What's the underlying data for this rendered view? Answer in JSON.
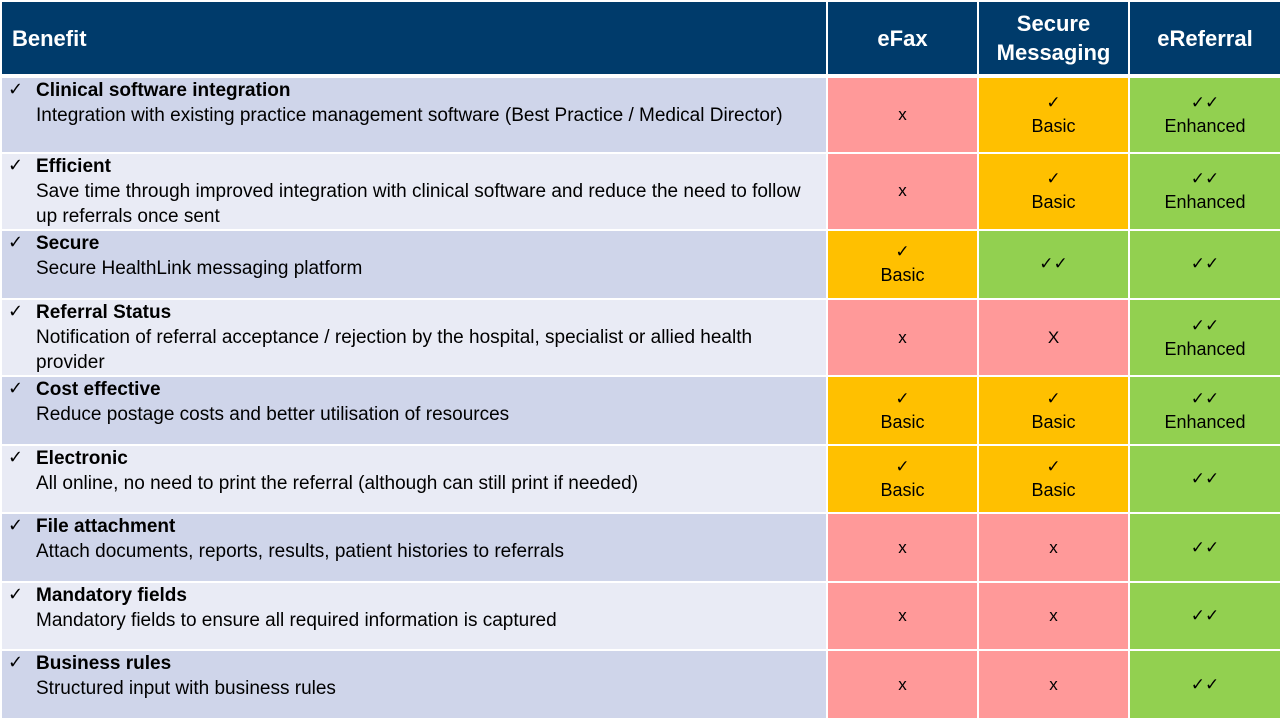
{
  "header": {
    "benefit": "Benefit",
    "efax": "eFax",
    "secure_messaging_line1": "Secure",
    "secure_messaging_line2": "Messaging",
    "ereferral": "eReferral"
  },
  "colors": {
    "header_bg": "#003b6b",
    "row_odd": "#cfd5ea",
    "row_even": "#e9ebf5",
    "red": "#ff9999",
    "amber": "#ffc000",
    "green": "#92d050"
  },
  "rows": [
    {
      "tick": "✓",
      "title": "Clinical software integration",
      "desc": "Integration with existing practice management  software (Best Practice / Medical Director)",
      "efax": {
        "mark": "x",
        "level": "",
        "color": "red"
      },
      "sm": {
        "mark": "✓",
        "level": "Basic",
        "color": "amber"
      },
      "eref": {
        "mark": "✓✓",
        "level": "Enhanced",
        "color": "green"
      }
    },
    {
      "tick": "✓",
      "title": "Efficient",
      "desc": "Save time through improved integration with clinical software and reduce the need to follow up referrals once sent",
      "efax": {
        "mark": "x",
        "level": "",
        "color": "red"
      },
      "sm": {
        "mark": "✓",
        "level": "Basic",
        "color": "amber"
      },
      "eref": {
        "mark": "✓✓",
        "level": "Enhanced",
        "color": "green"
      }
    },
    {
      "tick": "✓",
      "title": "Secure",
      "desc": "Secure HealthLink messaging platform",
      "efax": {
        "mark": "✓",
        "level": "Basic",
        "color": "amber"
      },
      "sm": {
        "mark": "✓✓",
        "level": "",
        "color": "green"
      },
      "eref": {
        "mark": "✓✓",
        "level": "",
        "color": "green"
      }
    },
    {
      "tick": "✓",
      "title": "Referral Status",
      "desc": "Notification of referral acceptance / rejection by the hospital, specialist or allied health provider",
      "efax": {
        "mark": "x",
        "level": "",
        "color": "red"
      },
      "sm": {
        "mark": "X",
        "level": "",
        "color": "red"
      },
      "eref": {
        "mark": "✓✓",
        "level": "Enhanced",
        "color": "green"
      }
    },
    {
      "tick": "✓",
      "title": "Cost effective",
      "desc": "Reduce postage costs and better utilisation of resources",
      "efax": {
        "mark": "✓",
        "level": "Basic",
        "color": "amber"
      },
      "sm": {
        "mark": "✓",
        "level": "Basic",
        "color": "amber"
      },
      "eref": {
        "mark": "✓✓",
        "level": "Enhanced",
        "color": "green"
      }
    },
    {
      "tick": "✓",
      "title": "Electronic",
      "desc": "All online, no need to print the referral (although  can still print if needed)",
      "efax": {
        "mark": "✓",
        "level": "Basic",
        "color": "amber"
      },
      "sm": {
        "mark": "✓",
        "level": "Basic",
        "color": "amber"
      },
      "eref": {
        "mark": "✓✓",
        "level": "",
        "color": "green"
      }
    },
    {
      "tick": "✓",
      "title": "File attachment",
      "desc": "Attach documents,  reports, results, patient histories to referrals",
      "efax": {
        "mark": "x",
        "level": "",
        "color": "red"
      },
      "sm": {
        "mark": "x",
        "level": "",
        "color": "red"
      },
      "eref": {
        "mark": "✓✓",
        "level": "",
        "color": "green"
      }
    },
    {
      "tick": "✓",
      "title": "Mandatory fields",
      "desc": "Mandatory fields to ensure all required information is captured",
      "efax": {
        "mark": "x",
        "level": "",
        "color": "red"
      },
      "sm": {
        "mark": "x",
        "level": "",
        "color": "red"
      },
      "eref": {
        "mark": "✓✓",
        "level": "",
        "color": "green"
      }
    },
    {
      "tick": "✓",
      "title": "Business rules",
      "desc": "Structured input with business rules",
      "efax": {
        "mark": "x",
        "level": "",
        "color": "red"
      },
      "sm": {
        "mark": "x",
        "level": "",
        "color": "red"
      },
      "eref": {
        "mark": "✓✓",
        "level": "",
        "color": "green"
      }
    }
  ]
}
